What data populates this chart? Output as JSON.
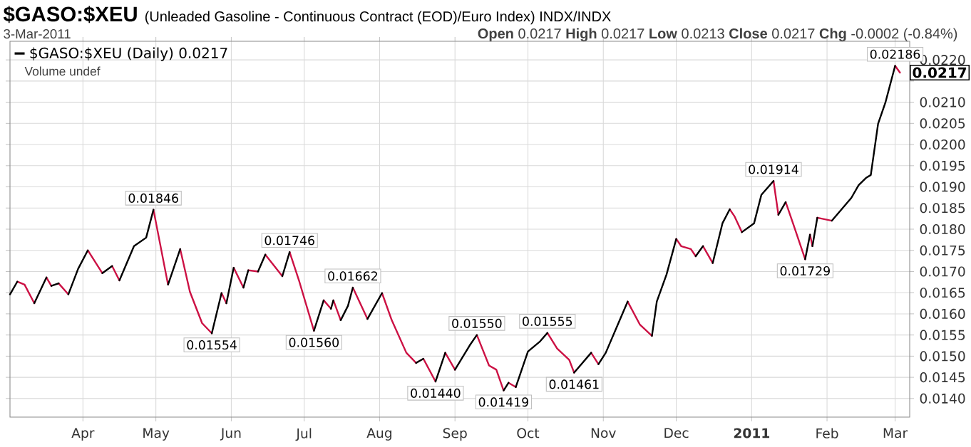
{
  "chart_data": {
    "type": "line",
    "title": "$GASO:$XEU",
    "subtitle": "(Unleaded Gasoline - Continuous Contract (EOD)/Euro Index)  INDX/INDX",
    "annotations": [
      "3-Mar-2011",
      "**Open** 0.0217  **High** 0.0217  **Low** 0.0213  **Close** 0.0217  **Chg** -0.0002 (-0.84%)",
      "Volume undef",
      {
        "text": "0.01846",
        "x": "2010-04-30",
        "y": 0.01846
      },
      {
        "text": "0.01554",
        "x": "2010-05-24",
        "y": 0.01554
      },
      {
        "text": "0.01746",
        "x": "2010-06-25",
        "y": 0.01746
      },
      {
        "text": "0.01560",
        "x": "2010-07-05",
        "y": 0.0156
      },
      {
        "text": "0.01662",
        "x": "2010-07-21",
        "y": 0.01662
      },
      {
        "text": "0.01440",
        "x": "2010-08-24",
        "y": 0.0144
      },
      {
        "text": "0.01550",
        "x": "2010-09-10",
        "y": 0.0155
      },
      {
        "text": "0.01419",
        "x": "2010-09-21",
        "y": 0.01419
      },
      {
        "text": "0.01555",
        "x": "2010-10-09",
        "y": 0.01555
      },
      {
        "text": "0.01461",
        "x": "2010-10-20",
        "y": 0.01461
      },
      {
        "text": "0.01914",
        "x": "2011-01-10",
        "y": 0.01914
      },
      {
        "text": "0.01729",
        "x": "2011-01-23",
        "y": 0.01729
      },
      {
        "text": "0.02186",
        "x": "2011-03-01",
        "y": 0.02186
      },
      {
        "text": "0.0217",
        "x": "2011-03-03",
        "y": 0.0217
      }
    ],
    "series": [
      {
        "name": "$GASO:$XEU (Daily) 0.0217",
        "color": "#000000",
        "x": [
          "2010-03-02",
          "2010-03-05",
          null,
          "2010-03-12",
          "2010-03-17",
          null,
          "2010-03-19",
          "2010-03-22",
          null,
          "2010-03-26",
          "2010-03-30",
          "2010-04-03",
          null,
          "2010-04-09",
          "2010-04-13",
          null,
          "2010-04-16",
          "2010-04-22",
          "2010-04-27",
          "2010-04-30",
          null,
          "2010-05-06",
          "2010-05-11",
          null,
          "2010-05-24",
          "2010-05-28",
          null,
          "2010-05-30",
          "2010-06-02",
          null,
          "2010-06-06",
          "2010-06-08",
          null,
          "2010-06-12",
          "2010-06-15",
          null,
          "2010-06-22",
          "2010-06-25",
          null,
          "2010-07-05",
          "2010-07-09",
          null,
          "2010-07-12",
          "2010-07-13",
          null,
          "2010-07-16",
          "2010-07-19",
          "2010-07-21",
          null,
          "2010-07-27",
          "2010-08-02",
          null,
          "2010-08-16",
          "2010-08-19",
          null,
          "2010-08-24",
          "2010-08-28",
          null,
          "2010-09-01",
          "2010-09-07",
          "2010-09-10",
          null,
          "2010-09-21",
          "2010-09-23",
          null,
          "2010-09-26",
          "2010-10-01",
          "2010-10-06",
          "2010-10-09",
          null,
          "2010-10-20",
          "2010-10-27",
          null,
          "2010-10-30",
          "2010-11-02",
          "2010-11-11",
          null,
          "2010-11-21",
          "2010-11-23",
          "2010-11-27",
          "2010-12-01",
          null,
          "2010-12-09",
          "2010-12-12",
          null,
          "2010-12-16",
          "2010-12-20",
          "2010-12-23",
          null,
          "2010-12-28",
          "2011-01-02",
          "2011-01-05",
          "2011-01-10",
          null,
          "2011-01-12",
          "2011-01-15",
          null,
          "2011-01-23",
          "2011-01-25",
          null,
          "2011-01-26",
          "2011-01-28",
          null,
          "2011-02-03",
          "2011-02-07",
          "2011-02-11",
          "2011-02-14",
          "2011-02-17",
          "2011-02-19",
          "2011-02-22",
          "2011-02-25",
          "2011-03-01"
        ],
        "values": [
          0.01646,
          0.01676,
          null,
          0.01625,
          0.01686,
          null,
          0.01666,
          0.01672,
          null,
          0.01646,
          0.01706,
          0.0175,
          null,
          0.01696,
          0.01713,
          null,
          0.01679,
          0.0176,
          0.0178,
          0.01846,
          null,
          0.01669,
          0.01753,
          null,
          0.01554,
          0.01649,
          null,
          0.01625,
          0.01709,
          null,
          0.01662,
          0.01703,
          null,
          0.017,
          0.0174,
          null,
          0.01689,
          0.01746,
          null,
          0.0156,
          0.01632,
          null,
          0.01612,
          0.01632,
          null,
          0.01585,
          0.01619,
          0.01662,
          null,
          0.01588,
          0.01649,
          null,
          0.01484,
          0.01494,
          null,
          0.0144,
          0.01508,
          null,
          0.01468,
          0.01525,
          0.0155,
          null,
          0.01419,
          0.01437,
          null,
          0.01427,
          0.01511,
          0.01535,
          0.01555,
          null,
          0.01461,
          0.01508,
          null,
          0.01481,
          0.01508,
          0.01629,
          null,
          0.01548,
          0.01629,
          0.01693,
          0.01777,
          null,
          0.01736,
          0.0176,
          null,
          0.0172,
          0.01814,
          0.01847,
          null,
          0.01793,
          0.01814,
          0.01881,
          0.01914,
          null,
          0.01834,
          0.01864,
          null,
          0.01729,
          0.01787,
          null,
          0.0176,
          0.01827,
          null,
          0.0182,
          0.01847,
          0.01874,
          0.01904,
          0.01921,
          0.01928,
          0.02049,
          0.02099,
          0.02186
        ]
      },
      {
        "color": "#cc1144",
        "x": [
          "2010-03-05",
          "2010-03-08",
          "2010-03-12",
          null,
          "2010-03-17",
          "2010-03-19",
          null,
          "2010-03-22",
          "2010-03-26",
          null,
          "2010-04-03",
          "2010-04-09",
          null,
          "2010-04-13",
          "2010-04-16",
          null,
          "2010-04-30",
          "2010-05-06",
          null,
          "2010-05-11",
          "2010-05-15",
          "2010-05-20",
          "2010-05-24",
          null,
          "2010-05-28",
          "2010-05-30",
          null,
          "2010-06-02",
          "2010-06-06",
          null,
          "2010-06-08",
          "2010-06-12",
          null,
          "2010-06-15",
          "2010-06-22",
          null,
          "2010-06-25",
          "2010-06-29",
          "2010-07-05",
          null,
          "2010-07-09",
          "2010-07-12",
          null,
          "2010-07-13",
          "2010-07-16",
          null,
          "2010-07-21",
          "2010-07-27",
          null,
          "2010-08-02",
          "2010-08-06",
          "2010-08-12",
          "2010-08-16",
          null,
          "2010-08-19",
          "2010-08-24",
          null,
          "2010-08-28",
          "2010-09-01",
          null,
          "2010-09-10",
          "2010-09-15",
          "2010-09-18",
          "2010-09-21",
          null,
          "2010-09-23",
          "2010-09-26",
          null,
          "2010-10-09",
          "2010-10-13",
          "2010-10-18",
          "2010-10-20",
          null,
          "2010-10-27",
          "2010-10-30",
          null,
          "2010-11-11",
          "2010-11-16",
          "2010-11-21",
          null,
          "2010-12-01",
          "2010-12-03",
          "2010-12-07",
          "2010-12-09",
          null,
          "2010-12-12",
          "2010-12-16",
          null,
          "2010-12-23",
          "2010-12-25",
          "2010-12-28",
          null,
          "2011-01-10",
          "2011-01-12",
          null,
          "2011-01-15",
          "2011-01-18",
          "2011-01-23",
          null,
          "2011-01-25",
          "2011-01-26",
          null,
          "2011-01-28",
          "2011-02-03",
          null,
          "2011-03-01",
          "2011-03-03"
        ],
        "values": [
          0.01676,
          0.01669,
          0.01625,
          null,
          0.01686,
          0.01666,
          null,
          0.01672,
          0.01646,
          null,
          0.0175,
          0.01696,
          null,
          0.01713,
          0.01679,
          null,
          0.01846,
          0.01669,
          null,
          0.01753,
          0.01652,
          0.01578,
          0.01554,
          null,
          0.01649,
          0.01625,
          null,
          0.01709,
          0.01662,
          null,
          0.01703,
          0.017,
          null,
          0.0174,
          0.01689,
          null,
          0.01746,
          0.01676,
          0.0156,
          null,
          0.01632,
          0.01612,
          null,
          0.01632,
          0.01585,
          null,
          0.01662,
          0.01588,
          null,
          0.01649,
          0.01585,
          0.01508,
          0.01484,
          null,
          0.01494,
          0.0144,
          null,
          0.01508,
          0.01468,
          null,
          0.0155,
          0.01478,
          0.01468,
          0.01419,
          null,
          0.01437,
          0.01427,
          null,
          0.01555,
          0.01518,
          0.01491,
          0.01461,
          null,
          0.01508,
          0.01481,
          null,
          0.01629,
          0.01575,
          0.01548,
          null,
          0.01777,
          0.0176,
          0.01753,
          0.01736,
          null,
          0.0176,
          0.0172,
          null,
          0.01847,
          0.0183,
          0.01793,
          null,
          0.01914,
          0.01834,
          null,
          0.01864,
          0.01814,
          0.01729,
          null,
          0.01787,
          0.0176,
          null,
          0.01827,
          0.0182,
          null,
          0.02186,
          0.0217
        ]
      }
    ],
    "xlim": [
      "2010-03-02",
      "2011-03-07"
    ],
    "xticks": [
      {
        "value": "2010-04-01",
        "label": "Apr"
      },
      {
        "value": "2010-05-01",
        "label": "May"
      },
      {
        "value": "2010-06-01",
        "label": "Jun"
      },
      {
        "value": "2010-07-01",
        "label": "Jul"
      },
      {
        "value": "2010-08-01",
        "label": "Aug"
      },
      {
        "value": "2010-09-01",
        "label": "Sep"
      },
      {
        "value": "2010-10-01",
        "label": "Oct"
      },
      {
        "value": "2010-11-01",
        "label": "Nov"
      },
      {
        "value": "2010-12-01",
        "label": "Dec"
      },
      {
        "value": "2011-01-01",
        "label": "**2011**"
      },
      {
        "value": "2011-02-01",
        "label": "Feb"
      },
      {
        "value": "2011-03-01",
        "label": "Mar"
      }
    ],
    "ylim": [
      0.01356,
      0.02244
    ],
    "yticks": [
      {
        "value": 0.014,
        "label": "0.0140"
      },
      {
        "value": 0.0145,
        "label": "0.0145"
      },
      {
        "value": 0.015,
        "label": "0.0150"
      },
      {
        "value": 0.0155,
        "label": "0.0155"
      },
      {
        "value": 0.016,
        "label": "0.0160"
      },
      {
        "value": 0.0165,
        "label": "0.0165"
      },
      {
        "value": 0.017,
        "label": "0.0170"
      },
      {
        "value": 0.0175,
        "label": "0.0175"
      },
      {
        "value": 0.018,
        "label": "0.0180"
      },
      {
        "value": 0.0185,
        "label": "0.0185"
      },
      {
        "value": 0.019,
        "label": "0.0190"
      },
      {
        "value": 0.0195,
        "label": "0.0195"
      },
      {
        "value": 0.02,
        "label": "0.0200"
      },
      {
        "value": 0.0205,
        "label": "0.0205"
      },
      {
        "value": 0.021,
        "label": "0.0210"
      },
      {
        "value": 0.0215,
        "label": null
      },
      {
        "value": 0.022,
        "label": "0.0220"
      }
    ],
    "grid": true,
    "legend": "top left",
    "marker": "none",
    "line_style": "solid"
  }
}
